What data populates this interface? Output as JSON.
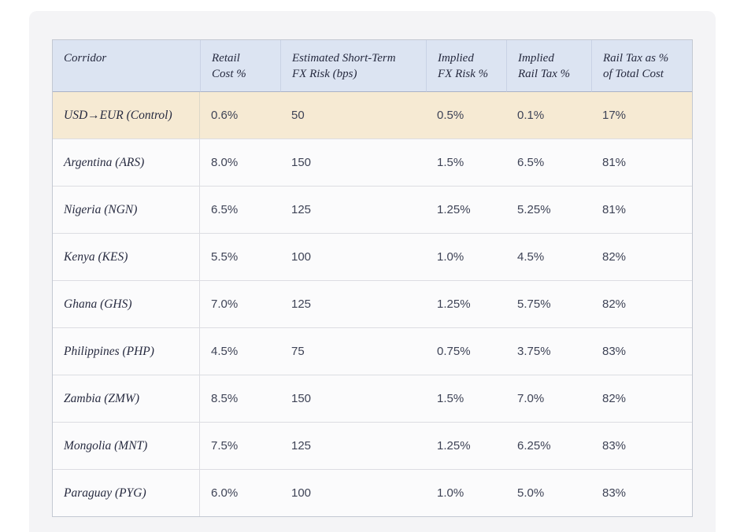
{
  "colors": {
    "page_bg": "#ffffff",
    "card_bg": "#f4f4f6",
    "header_bg": "#dce4f2",
    "control_row_bg": "#f6ead3",
    "row_bg": "#fbfbfc",
    "outer_border": "#c3c8d2",
    "header_divider": "#a9b2c6",
    "row_divider": "#dcdde2",
    "text": "#272b40"
  },
  "table": {
    "columns": [
      {
        "line1": "Corridor",
        "line2": ""
      },
      {
        "line1": "Retail",
        "line2": "Cost %"
      },
      {
        "line1": "Estimated Short-Term",
        "line2": "FX Risk (bps)"
      },
      {
        "line1": "Implied",
        "line2": "FX Risk %"
      },
      {
        "line1": "Implied",
        "line2": "Rail Tax %"
      },
      {
        "line1": "Rail Tax as %",
        "line2": "of Total Cost"
      }
    ],
    "rows": [
      {
        "corridor": "USD→EUR (Control)",
        "retail_cost": "0.6%",
        "fx_risk_bps": "50",
        "implied_fx_risk": "0.5%",
        "implied_rail_tax": "0.1%",
        "rail_tax_share": "17%"
      },
      {
        "corridor": "Argentina (ARS)",
        "retail_cost": "8.0%",
        "fx_risk_bps": "150",
        "implied_fx_risk": "1.5%",
        "implied_rail_tax": "6.5%",
        "rail_tax_share": "81%"
      },
      {
        "corridor": "Nigeria (NGN)",
        "retail_cost": "6.5%",
        "fx_risk_bps": "125",
        "implied_fx_risk": "1.25%",
        "implied_rail_tax": "5.25%",
        "rail_tax_share": "81%"
      },
      {
        "corridor": "Kenya (KES)",
        "retail_cost": "5.5%",
        "fx_risk_bps": "100",
        "implied_fx_risk": "1.0%",
        "implied_rail_tax": "4.5%",
        "rail_tax_share": "82%"
      },
      {
        "corridor": "Ghana (GHS)",
        "retail_cost": "7.0%",
        "fx_risk_bps": "125",
        "implied_fx_risk": "1.25%",
        "implied_rail_tax": "5.75%",
        "rail_tax_share": "82%"
      },
      {
        "corridor": "Philippines (PHP)",
        "retail_cost": "4.5%",
        "fx_risk_bps": "75",
        "implied_fx_risk": "0.75%",
        "implied_rail_tax": "3.75%",
        "rail_tax_share": "83%"
      },
      {
        "corridor": "Zambia (ZMW)",
        "retail_cost": "8.5%",
        "fx_risk_bps": "150",
        "implied_fx_risk": "1.5%",
        "implied_rail_tax": "7.0%",
        "rail_tax_share": "82%"
      },
      {
        "corridor": "Mongolia (MNT)",
        "retail_cost": "7.5%",
        "fx_risk_bps": "125",
        "implied_fx_risk": "1.25%",
        "implied_rail_tax": "6.25%",
        "rail_tax_share": "83%"
      },
      {
        "corridor": "Paraguay (PYG)",
        "retail_cost": "6.0%",
        "fx_risk_bps": "100",
        "implied_fx_risk": "1.0%",
        "implied_rail_tax": "5.0%",
        "rail_tax_share": "83%"
      }
    ]
  },
  "chart_data": {
    "type": "table",
    "title": "",
    "columns": [
      "Corridor",
      "Retail Cost %",
      "Estimated Short-Term FX Risk (bps)",
      "Implied FX Risk %",
      "Implied Rail Tax %",
      "Rail Tax as % of Total Cost"
    ],
    "rows": [
      [
        "USD→EUR (Control)",
        0.6,
        50,
        0.5,
        0.1,
        17
      ],
      [
        "Argentina (ARS)",
        8.0,
        150,
        1.5,
        6.5,
        81
      ],
      [
        "Nigeria (NGN)",
        6.5,
        125,
        1.25,
        5.25,
        81
      ],
      [
        "Kenya (KES)",
        5.5,
        100,
        1.0,
        4.5,
        82
      ],
      [
        "Ghana (GHS)",
        7.0,
        125,
        1.25,
        5.75,
        82
      ],
      [
        "Philippines (PHP)",
        4.5,
        75,
        0.75,
        3.75,
        83
      ],
      [
        "Zambia (ZMW)",
        8.5,
        150,
        1.5,
        7.0,
        82
      ],
      [
        "Mongolia (MNT)",
        7.5,
        125,
        1.25,
        6.25,
        83
      ],
      [
        "Paraguay (PYG)",
        6.0,
        100,
        1.0,
        5.0,
        83
      ]
    ],
    "highlighted_row": "USD→EUR (Control)",
    "layout_hints": {
      "header_background": "#dce4f2",
      "highlight_background": "#f6ead3",
      "grid": "horizontal-rules"
    }
  }
}
